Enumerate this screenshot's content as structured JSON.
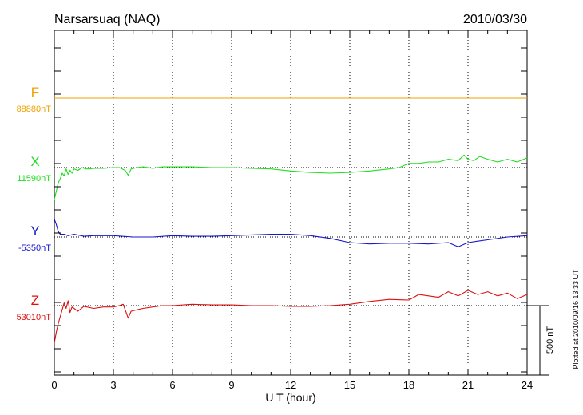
{
  "chart_data": {
    "type": "line",
    "title": "Narsarsuaq (NAQ)",
    "date": "2010/03/30",
    "xlabel": "U T (hour)",
    "xlim": [
      0,
      24
    ],
    "xticks": [
      "0",
      "3",
      "6",
      "9",
      "12",
      "15",
      "18",
      "21",
      "24"
    ],
    "grid": true,
    "scale_bar_label": "500 nT",
    "scale_bar_nT": 500,
    "footer_note": "Plotted at 2010/09/16 13:33 UT",
    "series": [
      {
        "name": "F",
        "baseline_label": "88880nT",
        "baseline_nT": 88880,
        "color": "#f0a000",
        "x": [
          0,
          24
        ],
        "y": [
          0,
          0
        ]
      },
      {
        "name": "X",
        "baseline_label": "11590nT",
        "baseline_nT": 11590,
        "color": "#22dd22",
        "x": [
          0,
          0.1,
          0.2,
          0.3,
          0.4,
          0.5,
          0.6,
          0.7,
          0.8,
          0.9,
          1.0,
          1.2,
          1.4,
          1.6,
          1.8,
          2.0,
          2.5,
          3.0,
          3.3,
          3.6,
          3.75,
          3.9,
          4.2,
          4.5,
          5.0,
          5.5,
          6.0,
          7.0,
          8.0,
          9.0,
          10.0,
          11.0,
          12.0,
          13.0,
          14.0,
          15.0,
          16.0,
          17.0,
          17.5,
          18.0,
          18.5,
          19.0,
          19.5,
          20.0,
          20.5,
          20.8,
          21.0,
          21.3,
          21.6,
          22.0,
          22.5,
          23.0,
          23.5,
          24.0
        ],
        "y": [
          -230,
          -170,
          -110,
          -80,
          -40,
          -60,
          -10,
          -50,
          -20,
          -40,
          -10,
          -20,
          0,
          -10,
          -10,
          -5,
          -5,
          0,
          0,
          -20,
          -55,
          -10,
          0,
          5,
          -5,
          5,
          5,
          5,
          0,
          0,
          -5,
          -10,
          -25,
          -35,
          -40,
          -35,
          -25,
          -10,
          0,
          30,
          30,
          40,
          40,
          60,
          50,
          90,
          60,
          50,
          80,
          60,
          40,
          60,
          40,
          70
        ]
      },
      {
        "name": "Y",
        "baseline_label": "-5350nT",
        "baseline_nT": -5350,
        "color": "#1818cc",
        "x": [
          0,
          0.1,
          0.2,
          0.3,
          0.5,
          0.7,
          1.0,
          1.5,
          2.0,
          3.0,
          4.0,
          5.0,
          6.0,
          7.0,
          8.0,
          9.0,
          10.0,
          11.0,
          12.0,
          13.0,
          14.0,
          15.0,
          16.0,
          17.0,
          18.0,
          19.0,
          20.0,
          20.5,
          21.0,
          21.5,
          22.0,
          23.0,
          24.0
        ],
        "y": [
          130,
          90,
          40,
          20,
          20,
          10,
          20,
          5,
          10,
          10,
          0,
          0,
          10,
          5,
          5,
          10,
          15,
          20,
          20,
          10,
          -10,
          -40,
          -50,
          -45,
          -45,
          -50,
          -40,
          -70,
          -40,
          -30,
          -20,
          0,
          10
        ]
      },
      {
        "name": "Z",
        "baseline_label": "53010nT",
        "baseline_nT": 53010,
        "color": "#dd1111",
        "x": [
          0,
          0.1,
          0.2,
          0.3,
          0.4,
          0.5,
          0.6,
          0.7,
          0.8,
          0.9,
          1.0,
          1.2,
          1.5,
          2.0,
          2.5,
          3.0,
          3.3,
          3.5,
          3.75,
          3.9,
          4.2,
          4.5,
          5.0,
          5.5,
          6.0,
          7.0,
          8.0,
          9.0,
          10.0,
          11.0,
          12.0,
          13.0,
          14.0,
          15.0,
          16.0,
          17.0,
          18.0,
          18.5,
          19.0,
          19.5,
          20.0,
          20.5,
          21.0,
          21.5,
          22.0,
          22.5,
          23.0,
          23.5,
          24.0
        ],
        "y": [
          -270,
          -190,
          -130,
          -80,
          -30,
          20,
          -20,
          35,
          -50,
          -10,
          -20,
          -40,
          -5,
          -20,
          -10,
          -10,
          0,
          10,
          -90,
          -40,
          -30,
          -20,
          -10,
          0,
          0,
          10,
          5,
          5,
          0,
          0,
          -5,
          -5,
          0,
          10,
          30,
          45,
          40,
          80,
          70,
          60,
          100,
          70,
          110,
          80,
          100,
          70,
          90,
          50,
          80
        ]
      }
    ]
  }
}
